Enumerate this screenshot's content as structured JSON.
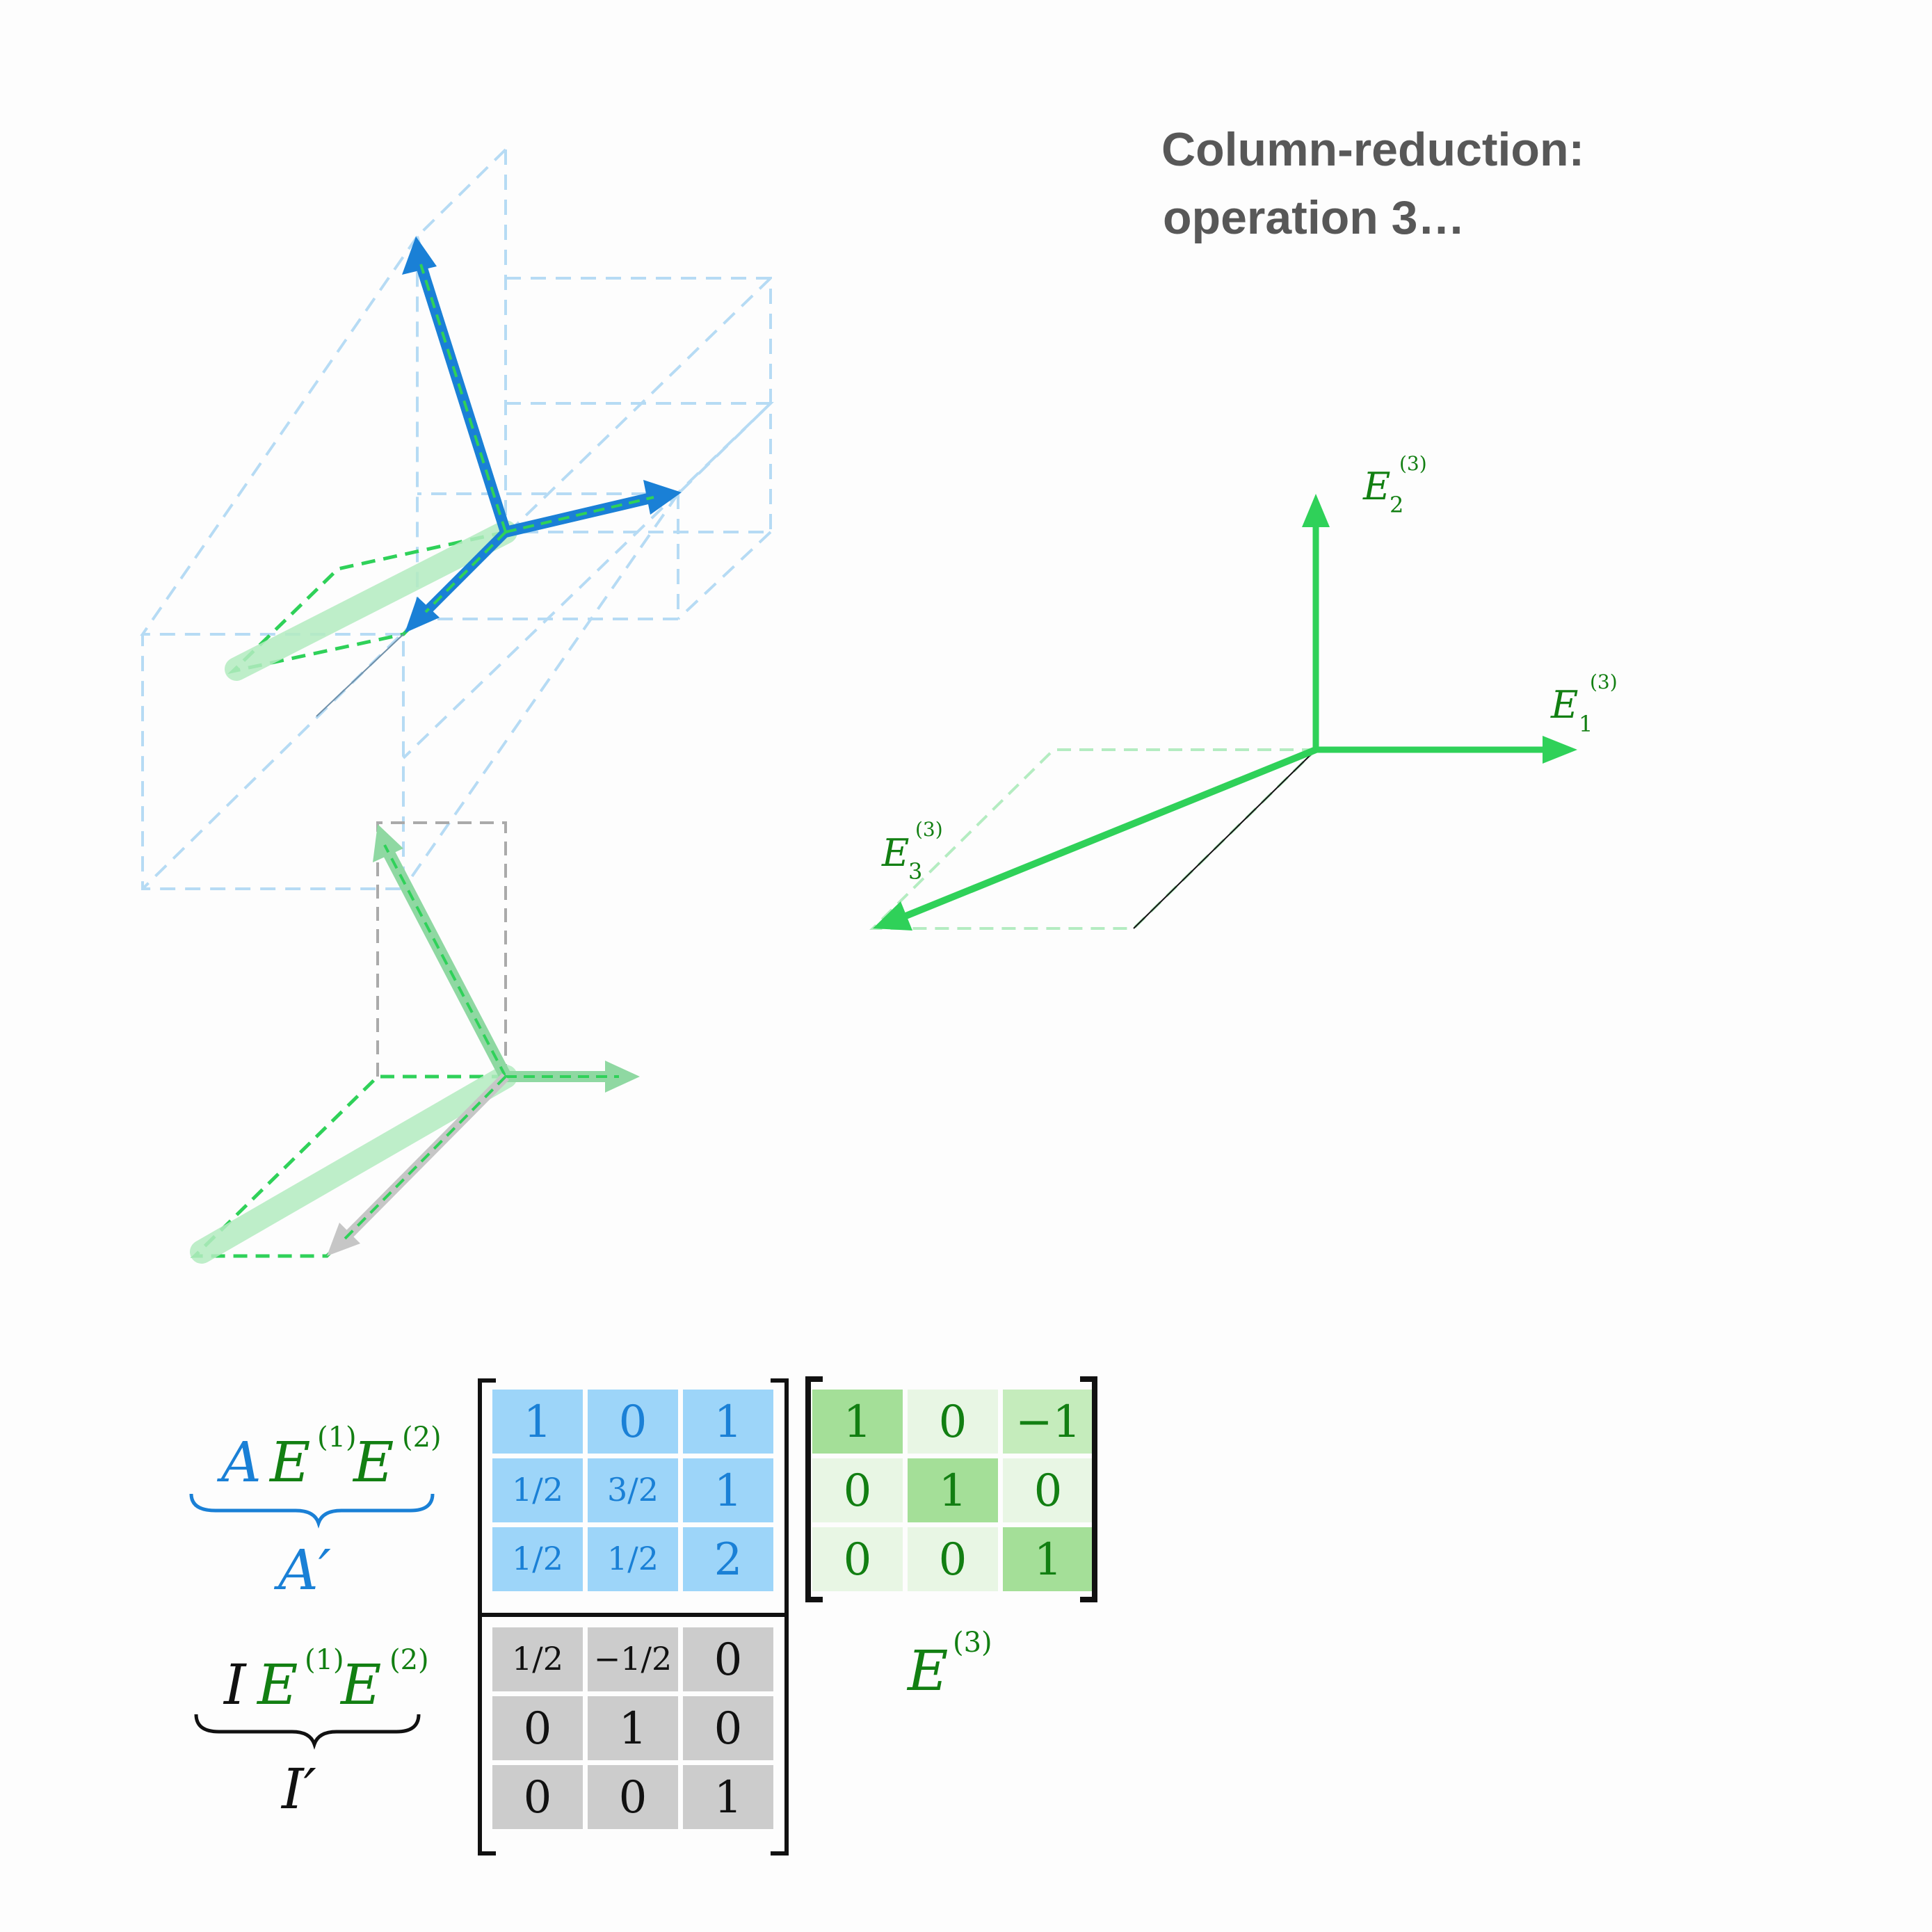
{
  "title": {
    "line1": "Column-reduction:",
    "line2": "operation 3…"
  },
  "colors": {
    "blue": "#1a80d6",
    "blue_fill": "#9dd5f9",
    "blue_dash": "#9fd0f2",
    "green": "#2fd159",
    "green_text": "#127f12",
    "green_light": "#b4ecc1",
    "gray_fill": "#cccccc",
    "gray_dash": "#aaaaaa"
  },
  "basis_labels": {
    "e1": {
      "base": "E",
      "sub": "1",
      "sup": "(3)"
    },
    "e2": {
      "base": "E",
      "sub": "2",
      "sup": "(3)"
    },
    "e3": {
      "base": "E",
      "sub": "3",
      "sup": "(3)"
    }
  },
  "equations": {
    "top": {
      "a": "A",
      "e": "E",
      "sup1": "(1)",
      "sup2": "(2)",
      "under": "A′"
    },
    "bottom": {
      "i": "I",
      "e": "E",
      "sup1": "(1)",
      "sup2": "(2)",
      "under": "I′"
    }
  },
  "matrix_a_prime": [
    [
      "1",
      "0",
      "1"
    ],
    [
      "1/2",
      "3/2",
      "1"
    ],
    [
      "1/2",
      "1/2",
      "2"
    ]
  ],
  "matrix_i_prime": [
    [
      "1/2",
      "−1/2",
      "0"
    ],
    [
      "0",
      "1",
      "0"
    ],
    [
      "0",
      "0",
      "1"
    ]
  ],
  "matrix_e3": {
    "cells": [
      [
        "1",
        "0",
        "−1"
      ],
      [
        "0",
        "1",
        "0"
      ],
      [
        "0",
        "0",
        "1"
      ]
    ],
    "shade": [
      [
        "dark",
        "light",
        "mid"
      ],
      [
        "light",
        "dark",
        "light"
      ],
      [
        "light",
        "light",
        "dark"
      ]
    ]
  },
  "matrix_e3_label": {
    "base": "E",
    "sup": "(3)"
  }
}
